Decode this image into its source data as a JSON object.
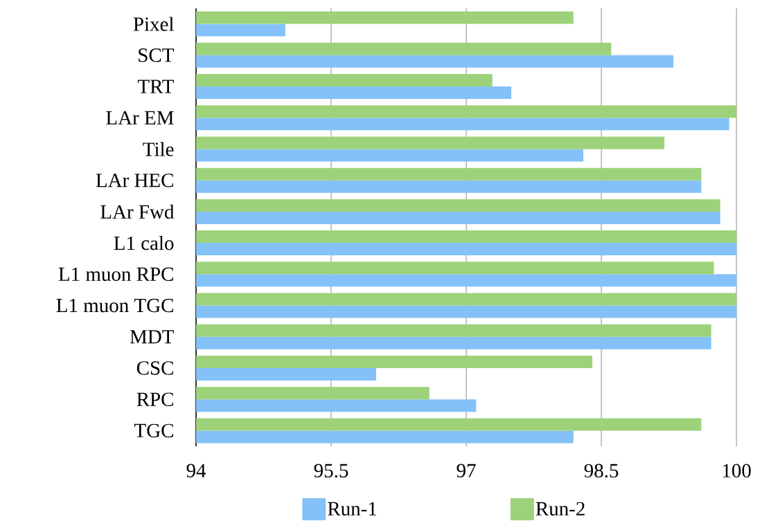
{
  "chart_data": {
    "type": "bar",
    "orientation": "horizontal",
    "categories": [
      "Pixel",
      "SCT",
      "TRT",
      "LAr EM",
      "Tile",
      "LAr HEC",
      "LAr Fwd",
      "L1 calo",
      "L1 muon RPC",
      "L1 muon TGC",
      "MDT",
      "CSC",
      "RPC",
      "TGC"
    ],
    "series": [
      {
        "name": "Run-1",
        "color": "#84c1f8",
        "values": [
          94.99,
          99.3,
          97.5,
          99.92,
          98.3,
          99.61,
          99.82,
          100,
          100,
          100,
          99.72,
          96.0,
          97.11,
          98.19
        ]
      },
      {
        "name": "Run-2",
        "color": "#9dd27a",
        "values": [
          98.19,
          98.61,
          97.29,
          100,
          99.2,
          99.61,
          99.82,
          100,
          99.75,
          100,
          99.72,
          98.4,
          96.59,
          99.61
        ]
      }
    ],
    "xlim": [
      94,
      100
    ],
    "xticks": [
      94,
      95.5,
      97,
      98.5,
      100
    ],
    "grid": "x",
    "legend": "bottom"
  }
}
